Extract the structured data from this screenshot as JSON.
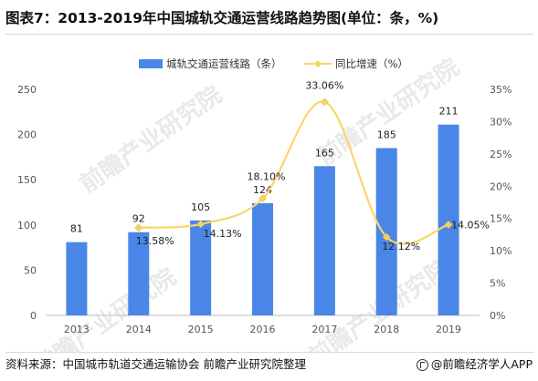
{
  "title": "图表7：2013-2019年中国城轨交通运营线路趋势图(单位：条，%)",
  "footer": {
    "source": "资料来源：中国城市轨道交通运输协会 前瞻产业研究院整理",
    "brand": "@前瞻经济学人APP"
  },
  "watermark_text": "前瞻产业研究院",
  "colors": {
    "bar": "#4a86e8",
    "line": "#fcd46b",
    "marker": "#f7d35c"
  },
  "chart_data": {
    "type": "bar",
    "categories": [
      "2013",
      "2014",
      "2015",
      "2016",
      "2017",
      "2018",
      "2019"
    ],
    "series": [
      {
        "name": "城轨交通运营线路（条）",
        "type": "bar",
        "axis": "left",
        "values": [
          81,
          92,
          105,
          124,
          165,
          185,
          211
        ],
        "labels": [
          "81",
          "92",
          "105",
          "124",
          "165",
          "185",
          "211"
        ]
      },
      {
        "name": "同比增速（%）",
        "type": "line",
        "axis": "right",
        "smooth": true,
        "values": [
          null,
          13.58,
          14.13,
          18.1,
          33.06,
          12.12,
          14.05
        ],
        "labels": [
          "",
          "13.58%",
          "14.13%",
          "18.10%",
          "33.06%",
          "12.12%",
          "14.05%"
        ]
      }
    ],
    "left_axis": {
      "min": 0,
      "max": 250,
      "ticks": [
        "0",
        "50",
        "100",
        "150",
        "200",
        "250"
      ]
    },
    "right_axis": {
      "min": 0,
      "max": 35,
      "ticks": [
        "0%",
        "5%",
        "10%",
        "15%",
        "20%",
        "25%",
        "30%",
        "35%"
      ]
    },
    "legend_position": "top-center",
    "grid": false
  }
}
